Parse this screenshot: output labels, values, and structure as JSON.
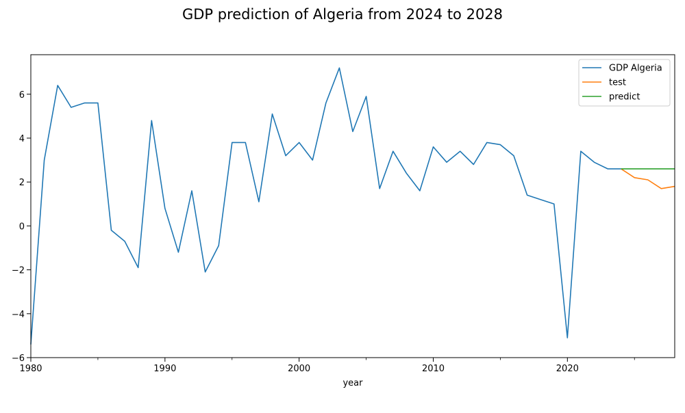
{
  "chart_data": {
    "type": "line",
    "title": "GDP prediction of Algeria from 2024 to 2028",
    "xlabel": "year",
    "ylabel": "",
    "xlim": [
      1980,
      2028
    ],
    "ylim": [
      -6,
      7.8
    ],
    "x_ticks": [
      1980,
      1990,
      2000,
      2010,
      2020
    ],
    "y_ticks": [
      -6,
      -4,
      -2,
      0,
      2,
      4,
      6
    ],
    "grid": false,
    "legend_position": "top-right",
    "series": [
      {
        "name": "GDP Algeria",
        "color": "#1f77b4",
        "x": [
          1980,
          1981,
          1982,
          1983,
          1984,
          1985,
          1986,
          1987,
          1988,
          1989,
          1990,
          1991,
          1992,
          1993,
          1994,
          1995,
          1996,
          1997,
          1998,
          1999,
          2000,
          2001,
          2002,
          2003,
          2004,
          2005,
          2006,
          2007,
          2008,
          2009,
          2010,
          2011,
          2012,
          2013,
          2014,
          2015,
          2016,
          2017,
          2018,
          2019,
          2020,
          2021,
          2022,
          2023,
          2024
        ],
        "y": [
          -5.4,
          3.0,
          6.4,
          5.4,
          5.6,
          5.6,
          -0.2,
          -0.7,
          -1.9,
          4.8,
          0.8,
          -1.2,
          1.6,
          -2.1,
          -0.9,
          3.8,
          3.8,
          1.1,
          5.1,
          3.2,
          3.8,
          3.0,
          5.6,
          7.2,
          4.3,
          5.9,
          1.7,
          3.4,
          2.4,
          1.6,
          3.6,
          2.9,
          3.4,
          2.8,
          3.8,
          3.7,
          3.2,
          1.4,
          1.2,
          1.0,
          -5.1,
          3.4,
          2.9,
          2.6,
          2.6
        ]
      },
      {
        "name": "test",
        "color": "#ff7f0e",
        "x": [
          2024,
          2025,
          2026,
          2027,
          2028
        ],
        "y": [
          2.6,
          2.2,
          2.1,
          1.7,
          1.8
        ]
      },
      {
        "name": "predict",
        "color": "#2ca02c",
        "x": [
          2024,
          2025,
          2026,
          2027,
          2028
        ],
        "y": [
          2.6,
          2.6,
          2.6,
          2.6,
          2.6
        ]
      }
    ]
  }
}
